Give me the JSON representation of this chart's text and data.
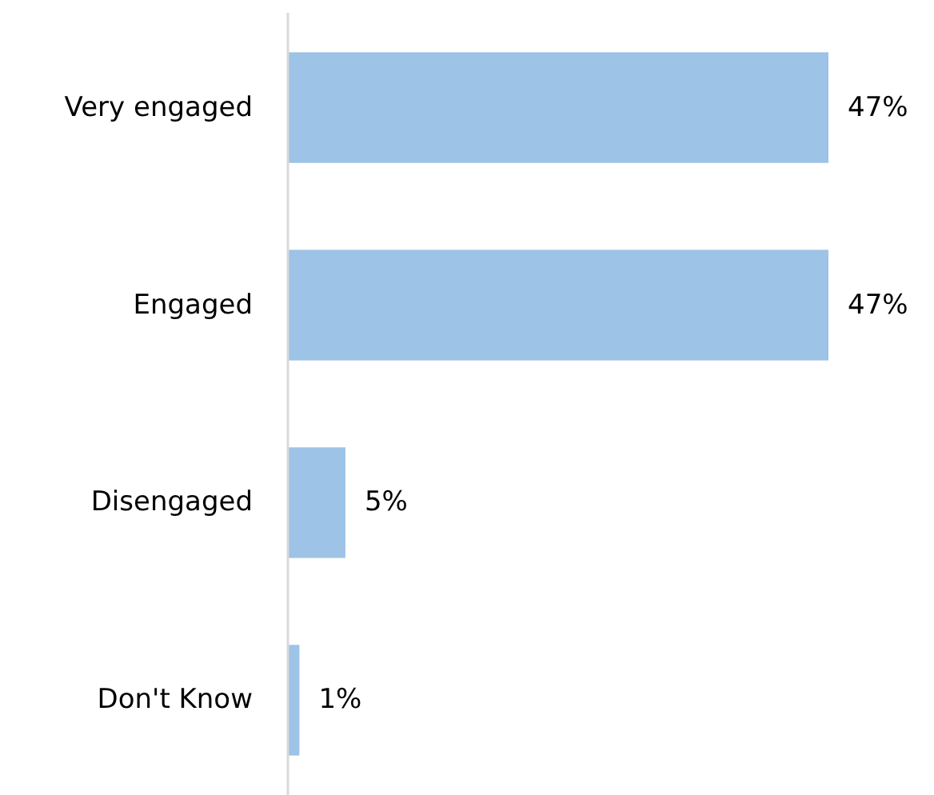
{
  "chart_data": {
    "type": "bar",
    "orientation": "horizontal",
    "categories": [
      "Very engaged",
      "Engaged",
      "Disengaged",
      "Don't Know"
    ],
    "values": [
      47,
      47,
      5,
      1
    ],
    "value_labels": [
      "47%",
      "47%",
      "5%",
      "1%"
    ],
    "color": "#9dc3e6"
  }
}
